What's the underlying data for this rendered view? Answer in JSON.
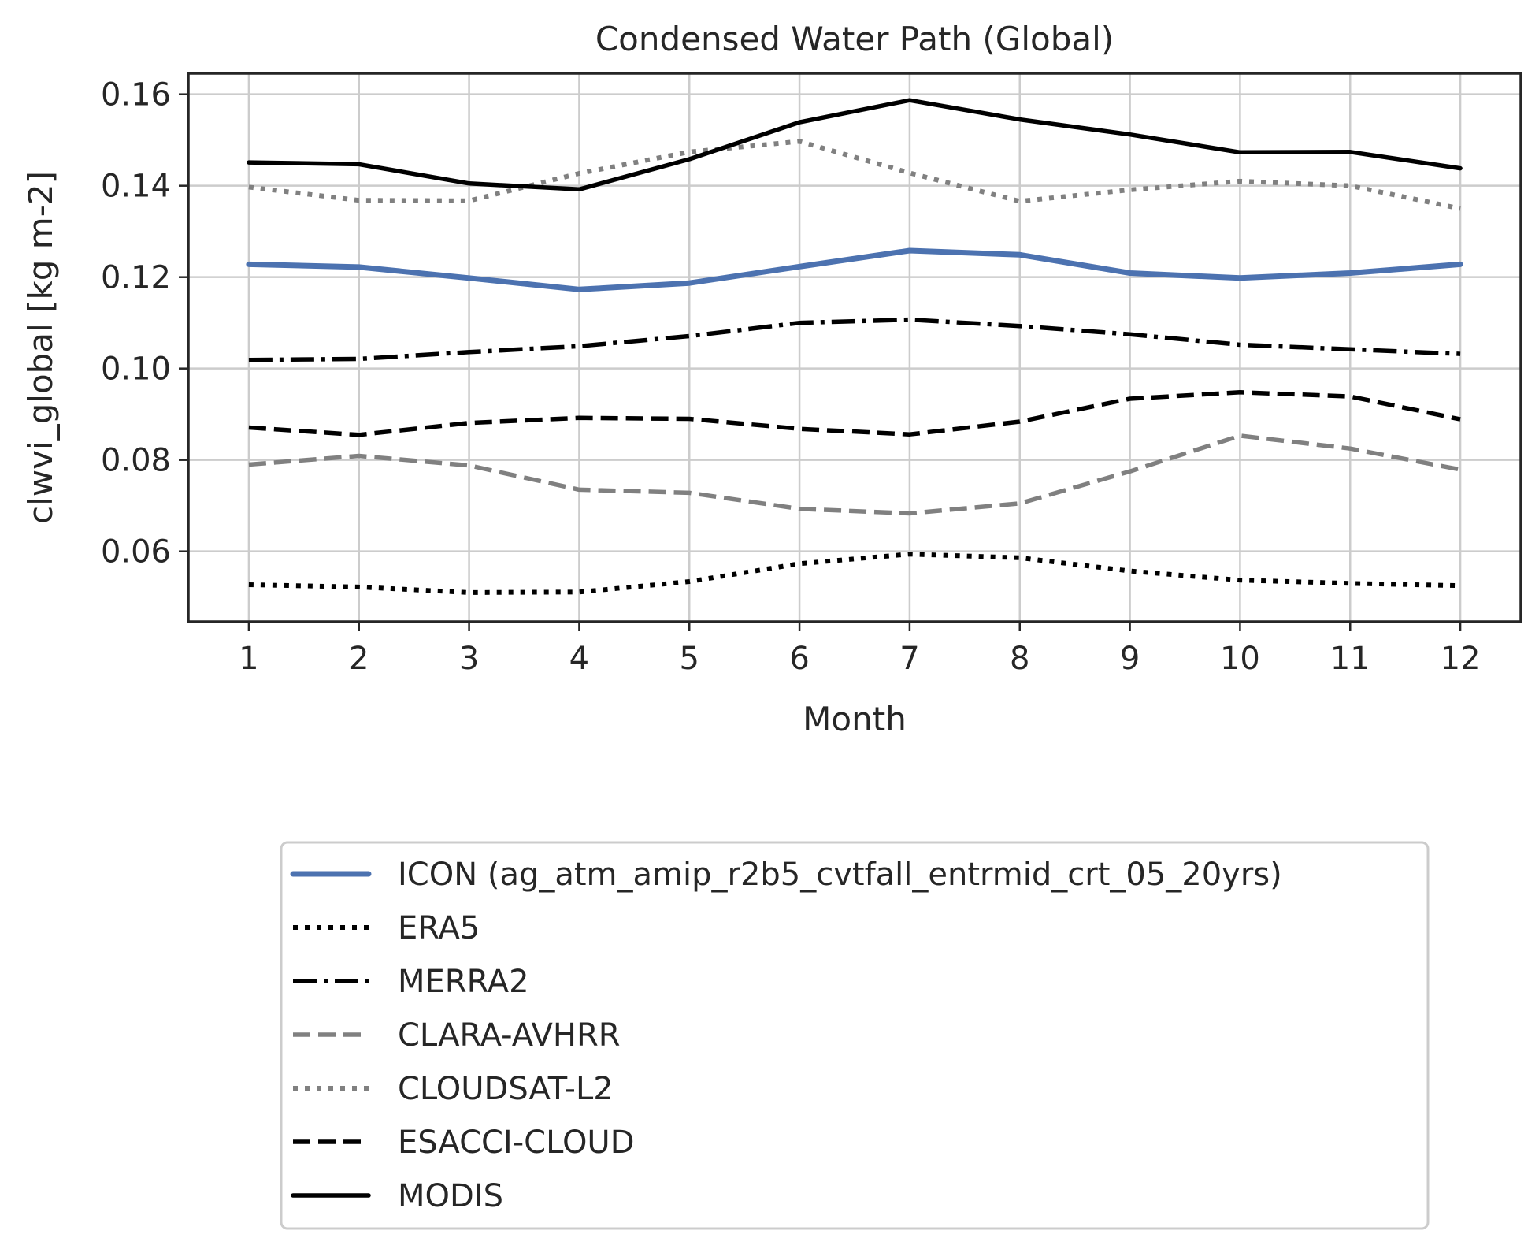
{
  "chart_data": {
    "type": "line",
    "title": "Condensed Water Path (Global)",
    "xlabel": "Month",
    "ylabel": "clwvi_global [kg m-2]",
    "x": [
      1,
      2,
      3,
      4,
      5,
      6,
      7,
      8,
      9,
      10,
      11,
      12
    ],
    "xlim": [
      0.45,
      12.55
    ],
    "ylim": [
      0.0446,
      0.1646
    ],
    "yticks": [
      0.06,
      0.08,
      0.1,
      0.12,
      0.14,
      0.16
    ],
    "ytick_labels": [
      "0.06",
      "0.08",
      "0.10",
      "0.12",
      "0.14",
      "0.16"
    ],
    "xtick_labels": [
      "1",
      "2",
      "3",
      "4",
      "5",
      "6",
      "7",
      "8",
      "9",
      "10",
      "11",
      "12"
    ],
    "grid": true,
    "legend_position": "below plot",
    "series": [
      {
        "name": "ICON (ag_atm_amip_r2b5_cvtfall_entrmid_crt_05_20yrs)",
        "color": "#4c72b0",
        "style": "solid",
        "values": [
          0.1228,
          0.1222,
          0.1198,
          0.1173,
          0.1187,
          0.1223,
          0.1258,
          0.1249,
          0.1209,
          0.1198,
          0.1209,
          0.1228
        ]
      },
      {
        "name": "ERA5",
        "color": "#000000",
        "style": "dotted",
        "values": [
          0.0527,
          0.0522,
          0.051,
          0.0511,
          0.0534,
          0.0573,
          0.0594,
          0.0586,
          0.0557,
          0.0537,
          0.053,
          0.0525
        ]
      },
      {
        "name": "MERRA2",
        "color": "#000000",
        "style": "dashdot",
        "values": [
          0.1019,
          0.1021,
          0.1036,
          0.1049,
          0.1071,
          0.11,
          0.1107,
          0.1093,
          0.1075,
          0.1052,
          0.1042,
          0.1032
        ]
      },
      {
        "name": "CLARA-AVHRR",
        "color": "#808080",
        "style": "dashed",
        "values": [
          0.079,
          0.0809,
          0.0788,
          0.0735,
          0.0728,
          0.0693,
          0.0683,
          0.0705,
          0.0775,
          0.0853,
          0.0825,
          0.0779
        ]
      },
      {
        "name": "CLOUDSAT-L2",
        "color": "#808080",
        "style": "dotted",
        "values": [
          0.1397,
          0.1368,
          0.1367,
          0.1427,
          0.1474,
          0.1497,
          0.1428,
          0.1366,
          0.1391,
          0.141,
          0.14,
          0.135
        ]
      },
      {
        "name": "ESACCI-CLOUD",
        "color": "#000000",
        "style": "dashed",
        "values": [
          0.0871,
          0.0855,
          0.0881,
          0.0892,
          0.089,
          0.0868,
          0.0856,
          0.0884,
          0.0934,
          0.0948,
          0.0939,
          0.0889
        ]
      },
      {
        "name": "MODIS",
        "color": "#000000",
        "style": "solid",
        "values": [
          0.1451,
          0.1447,
          0.1405,
          0.1392,
          0.1458,
          0.1539,
          0.1587,
          0.1545,
          0.1512,
          0.1473,
          0.1474,
          0.1438
        ]
      }
    ]
  }
}
